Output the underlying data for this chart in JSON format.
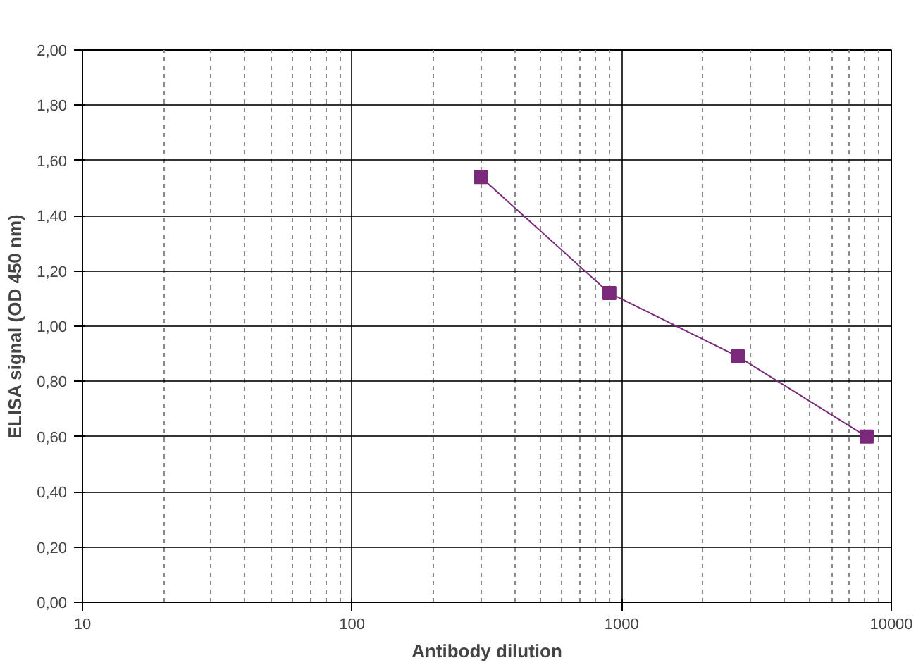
{
  "chart_data": {
    "type": "line",
    "xlabel": "Antibody dilution",
    "ylabel": "ELISA signal (OD 450 nm)",
    "x": [
      300,
      900,
      2700,
      8100
    ],
    "series": [
      {
        "color": "#7b2a7b",
        "values": [
          1.54,
          1.12,
          0.89,
          0.6
        ]
      }
    ],
    "log": "x",
    "xlim": [
      10,
      10000
    ],
    "xticks": [
      10,
      100,
      1000,
      10000
    ],
    "ylim": [
      0,
      2
    ],
    "yticks": [
      {
        "value": 0,
        "label": "0,00"
      },
      {
        "value": 0.2,
        "label": "0,20"
      },
      {
        "value": 0.4,
        "label": "0,40"
      },
      {
        "value": 0.6,
        "label": "0,60"
      },
      {
        "value": 0.8,
        "label": "0,80"
      },
      {
        "value": 1.0,
        "label": "1,00"
      },
      {
        "value": 1.2,
        "label": "1,20"
      },
      {
        "value": 1.4,
        "label": "1,40"
      },
      {
        "value": 1.6,
        "label": "1,60"
      },
      {
        "value": 1.8,
        "label": "1,80"
      },
      {
        "value": 2.0,
        "label": "2,00"
      }
    ],
    "grid": true,
    "marker": "square",
    "line_style": "solid"
  }
}
